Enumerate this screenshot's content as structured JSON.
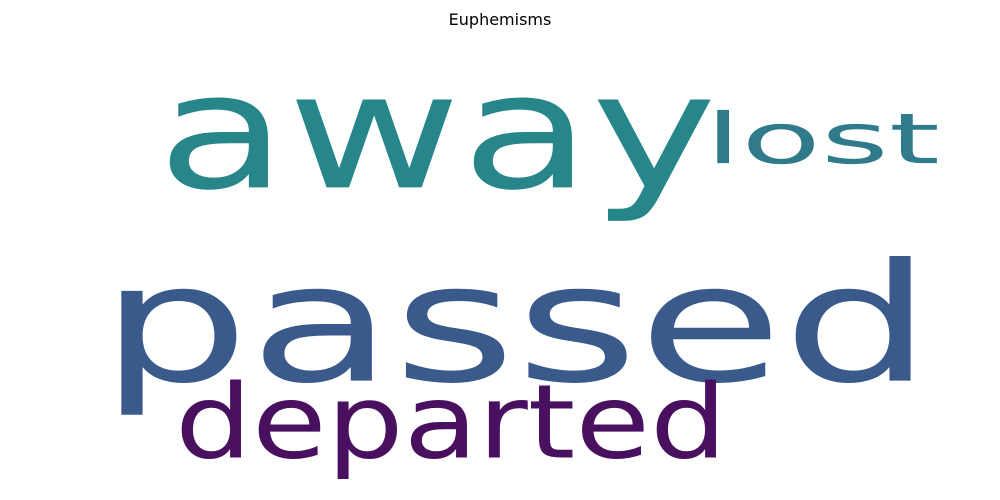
{
  "chart_data": {
    "type": "wordcloud",
    "title": "Euphemisms",
    "words": [
      {
        "text": "passed",
        "color": "#3b5a8c"
      },
      {
        "text": "away",
        "color": "#26868a"
      },
      {
        "text": "lost",
        "color": "#2f7b8c"
      },
      {
        "text": "departed",
        "color": "#4a1060"
      }
    ]
  }
}
